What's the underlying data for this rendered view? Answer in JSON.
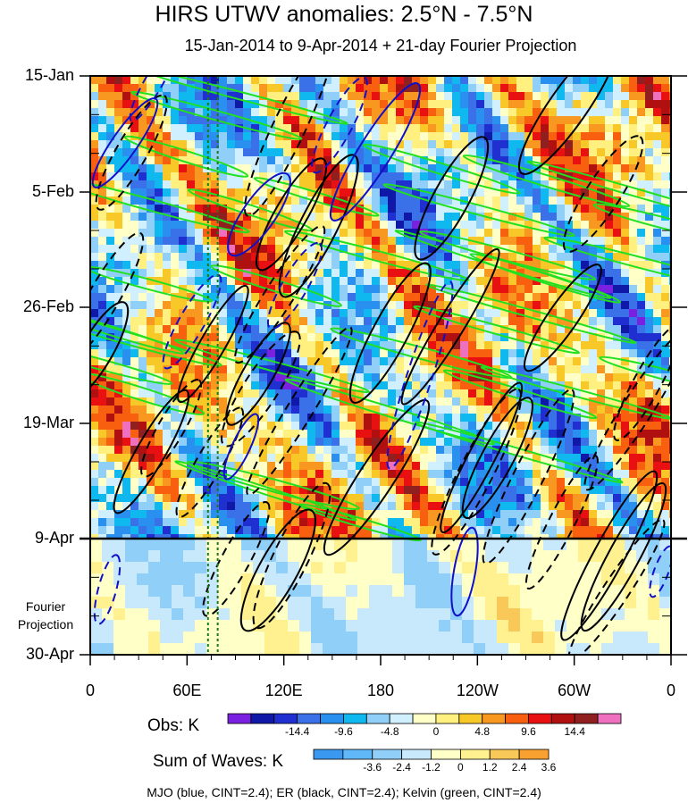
{
  "chart_data": {
    "type": "heatmap",
    "title": "HIRS UTWV anomalies: 2.5°N - 7.5°N",
    "subtitle": "15-Jan-2014 to 9-Apr-2014 + 21-day Fourier Projection",
    "x_tick_labels": [
      "0",
      "60E",
      "120E",
      "180",
      "120W",
      "60W",
      "0"
    ],
    "x_range_deg": [
      0,
      360
    ],
    "y_tick_labels": [
      "15-Jan",
      "5-Feb",
      "26-Feb",
      "19-Mar",
      "9-Apr",
      "30-Apr"
    ],
    "y_range": [
      "15-Jan-2014",
      "30-Apr-2014"
    ],
    "observation_end": "9-Apr",
    "projection_label": "Fourier\nProjection",
    "projection_lines_lon": [
      73,
      79
    ],
    "obs_colorbar": {
      "label": "Obs: K",
      "tick_labels": [
        "-14.4",
        "-9.6",
        "-4.8",
        "0",
        "4.8",
        "9.6",
        "14.4"
      ],
      "colors": [
        "#7a20e0",
        "#1018a8",
        "#2030d0",
        "#3a70e8",
        "#2a90f0",
        "#10b8f0",
        "#90d0f8",
        "#d0f0ff",
        "#ffffc8",
        "#fff080",
        "#f8c828",
        "#f89820",
        "#f86010",
        "#e81010",
        "#b01010",
        "#902020",
        "#f070c0"
      ]
    },
    "waves_colorbar": {
      "label": "Sum of Waves: K",
      "tick_labels": [
        "-3.6",
        "-2.4",
        "-1.2",
        "0",
        "1.2",
        "2.4",
        "3.6"
      ],
      "colors": [
        "#3a98f0",
        "#60b8f8",
        "#90d0f8",
        "#c8e8fc",
        "#ffffc8",
        "#fff090",
        "#f8c858",
        "#f8a030"
      ]
    },
    "contour_legend": "MJO (blue, CINT=2.4); ER (black, CINT=2.4); Kelvin (green, CINT=2.4)",
    "series": [
      {
        "name": "MJO",
        "color": "#1010c8",
        "cint": 2.4
      },
      {
        "name": "ER",
        "color": "#000000",
        "cint": 2.4
      },
      {
        "name": "Kelvin",
        "color": "#20e020",
        "cint": 2.4
      }
    ]
  }
}
